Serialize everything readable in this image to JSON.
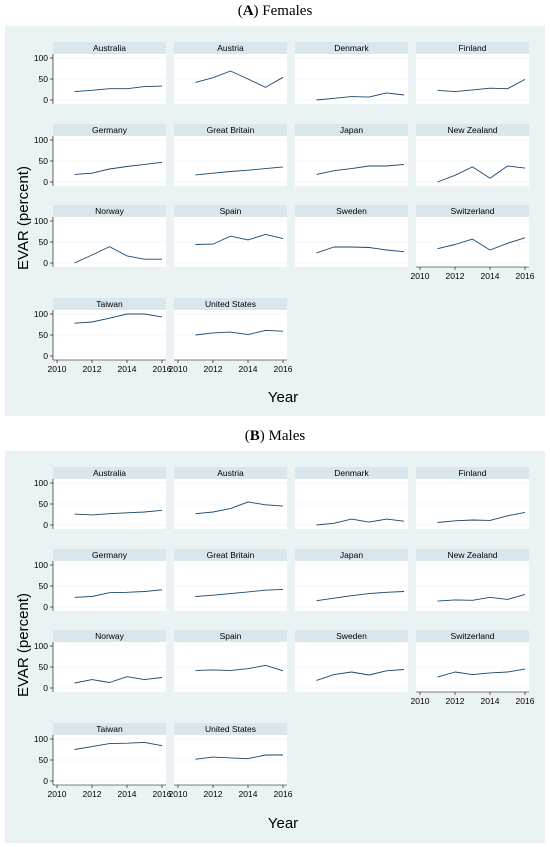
{
  "chart_data": [
    {
      "type": "line",
      "panel_letter": "A",
      "title": "Females",
      "xlabel": "Year",
      "ylabel": "EVAR (percent)",
      "xlim": [
        2010,
        2016
      ],
      "ylim": [
        0,
        100
      ],
      "x_ticks": [
        "2010",
        "2012",
        "2014",
        "2016"
      ],
      "y_ticks": [
        "0",
        "50",
        "100"
      ],
      "x": [
        2011,
        2012,
        2013,
        2014,
        2015,
        2016
      ],
      "series": [
        {
          "name": "Australia",
          "values": [
            20,
            23,
            27,
            27,
            32,
            33
          ]
        },
        {
          "name": "Austria",
          "values": [
            42,
            53,
            69,
            50,
            30,
            54
          ]
        },
        {
          "name": "Denmark",
          "values": [
            0,
            4,
            8,
            7,
            17,
            12
          ]
        },
        {
          "name": "Finland",
          "values": [
            23,
            20,
            24,
            28,
            27,
            49
          ]
        },
        {
          "name": "Germany",
          "values": [
            18,
            21,
            31,
            37,
            42,
            47
          ]
        },
        {
          "name": "Great Britain",
          "values": [
            17,
            21,
            25,
            28,
            32,
            36
          ]
        },
        {
          "name": "Japan",
          "values": [
            18,
            27,
            32,
            38,
            38,
            42
          ]
        },
        {
          "name": "New Zealand",
          "values": [
            0,
            16,
            36,
            9,
            38,
            33
          ]
        },
        {
          "name": "Norway",
          "values": [
            0,
            19,
            39,
            17,
            9,
            9
          ]
        },
        {
          "name": "Spain",
          "values": [
            44,
            45,
            64,
            55,
            68,
            58
          ]
        },
        {
          "name": "Sweden",
          "values": [
            24,
            38,
            38,
            37,
            31,
            27
          ]
        },
        {
          "name": "Switzerland",
          "values": [
            34,
            44,
            57,
            31,
            47,
            60
          ]
        },
        {
          "name": "Taiwan",
          "values": [
            78,
            81,
            90,
            100,
            100,
            93
          ]
        },
        {
          "name": "United States",
          "values": [
            50,
            55,
            57,
            51,
            61,
            59
          ]
        }
      ]
    },
    {
      "type": "line",
      "panel_letter": "B",
      "title": "Males",
      "xlabel": "Year",
      "ylabel": "EVAR (percent)",
      "xlim": [
        2010,
        2016
      ],
      "ylim": [
        0,
        100
      ],
      "x_ticks": [
        "2010",
        "2012",
        "2014",
        "2016"
      ],
      "y_ticks": [
        "0",
        "50",
        "100"
      ],
      "x": [
        2011,
        2012,
        2013,
        2014,
        2015,
        2016
      ],
      "series": [
        {
          "name": "Australia",
          "values": [
            26,
            24,
            27,
            29,
            31,
            35
          ]
        },
        {
          "name": "Austria",
          "values": [
            27,
            31,
            39,
            55,
            48,
            45
          ]
        },
        {
          "name": "Denmark",
          "values": [
            0,
            4,
            14,
            7,
            14,
            9
          ]
        },
        {
          "name": "Finland",
          "values": [
            6,
            10,
            12,
            11,
            22,
            30
          ]
        },
        {
          "name": "Germany",
          "values": [
            23,
            25,
            34,
            35,
            37,
            41
          ]
        },
        {
          "name": "Great Britain",
          "values": [
            25,
            28,
            32,
            36,
            40,
            42
          ]
        },
        {
          "name": "Japan",
          "values": [
            15,
            21,
            27,
            32,
            35,
            37
          ]
        },
        {
          "name": "New Zealand",
          "values": [
            14,
            17,
            16,
            23,
            18,
            30
          ]
        },
        {
          "name": "Norway",
          "values": [
            12,
            20,
            13,
            27,
            20,
            25
          ]
        },
        {
          "name": "Spain",
          "values": [
            42,
            43,
            42,
            46,
            54,
            41
          ]
        },
        {
          "name": "Sweden",
          "values": [
            18,
            32,
            38,
            31,
            41,
            44
          ]
        },
        {
          "name": "Switzerland",
          "values": [
            26,
            38,
            32,
            36,
            38,
            45
          ]
        },
        {
          "name": "Taiwan",
          "values": [
            75,
            82,
            89,
            90,
            92,
            84
          ]
        },
        {
          "name": "United States",
          "values": [
            52,
            57,
            55,
            53,
            62,
            62
          ]
        }
      ]
    }
  ]
}
